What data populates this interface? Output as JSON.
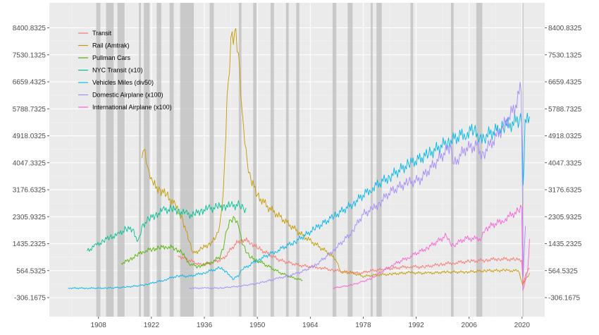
{
  "chart_data": {
    "type": "line",
    "title": "",
    "xlabel": "",
    "ylabel": "",
    "xlim": [
      1895,
      2026
    ],
    "ylim": [
      -400,
      8800
    ],
    "x_ticks": [
      1908,
      1922,
      1936,
      1950,
      1964,
      1978,
      1992,
      2006,
      2020
    ],
    "x_tick_labels": [
      "1908",
      "1922",
      "1936",
      "1950",
      "1964",
      "1978",
      "1992",
      "2006",
      "2020"
    ],
    "y_ticks": [
      -306.1675,
      564.5325,
      1435.2325,
      2305.9325,
      3176.6325,
      4047.3325,
      4918.0325,
      5788.7325,
      6659.4325,
      7530.1325,
      8400.8325
    ],
    "y_tick_labels": [
      "-306.1675",
      "564.5325",
      "1435.2325",
      "2305.9325",
      "3176.6325",
      "4047.3325",
      "4918.0325",
      "5788.7325",
      "6659.4325",
      "7530.1325",
      "8400.8325"
    ],
    "grid": true,
    "legend_position": "top-left",
    "recession_periods": [
      [
        1907.4,
        1908.5
      ],
      [
        1910.0,
        1912.0
      ],
      [
        1913.0,
        1914.9
      ],
      [
        1918.7,
        1919.2
      ],
      [
        1920.0,
        1921.5
      ],
      [
        1923.4,
        1924.6
      ],
      [
        1926.8,
        1927.9
      ],
      [
        1929.6,
        1933.2
      ],
      [
        1937.4,
        1938.5
      ],
      [
        1945.1,
        1945.8
      ],
      [
        1948.9,
        1949.8
      ],
      [
        1953.5,
        1954.4
      ],
      [
        1957.6,
        1958.3
      ],
      [
        1960.3,
        1961.1
      ],
      [
        1969.9,
        1970.9
      ],
      [
        1973.9,
        1975.2
      ],
      [
        1980.0,
        1980.5
      ],
      [
        1981.5,
        1982.9
      ],
      [
        1990.5,
        1991.2
      ],
      [
        2001.2,
        2001.9
      ],
      [
        2007.9,
        2009.5
      ],
      [
        2020.1,
        2020.4
      ]
    ],
    "series": [
      {
        "name": "Transit",
        "color": "#f8766d",
        "x": [
          1929,
          1932,
          1935,
          1938,
          1941,
          1944,
          1946,
          1948,
          1950,
          1953,
          1956,
          1959,
          1962,
          1966,
          1970,
          1974,
          1977,
          1980,
          1983,
          1986,
          1990,
          1994,
          1998,
          2002,
          2006,
          2010,
          2014,
          2018,
          2019.9,
          2020.3,
          2021,
          2022
        ],
        "values": [
          1050,
          900,
          750,
          820,
          950,
          1400,
          1580,
          1500,
          1300,
          1100,
          900,
          800,
          720,
          680,
          580,
          520,
          480,
          560,
          600,
          640,
          700,
          680,
          760,
          820,
          860,
          900,
          950,
          920,
          900,
          120,
          450,
          700
        ]
      },
      {
        "name": "Rail (Amtrak)",
        "color": "#c49a00",
        "x": [
          1919.5,
          1920,
          1921,
          1922,
          1924,
          1926,
          1928,
          1930,
          1932,
          1933,
          1935,
          1937,
          1939,
          1940,
          1941,
          1942,
          1943,
          1944,
          1945,
          1946,
          1947,
          1948,
          1950,
          1953,
          1956,
          1959,
          1962,
          1965,
          1968,
          1971,
          1972,
          1975,
          1978,
          1981,
          1985,
          1990,
          1995,
          2000,
          2005,
          2010,
          2015,
          2019,
          2020.2,
          2021,
          2022
        ],
        "values": [
          4200,
          4500,
          3800,
          3400,
          3200,
          3000,
          2700,
          2300,
          1500,
          1100,
          1250,
          1400,
          1600,
          1900,
          3000,
          6000,
          8000,
          8300,
          7500,
          5500,
          4300,
          3600,
          3000,
          2600,
          2300,
          2000,
          1700,
          1450,
          1200,
          900,
          500,
          500,
          380,
          420,
          450,
          500,
          480,
          520,
          520,
          560,
          570,
          560,
          100,
          300,
          450
        ]
      },
      {
        "name": "Pullman Cars",
        "color": "#53b400",
        "x": [
          1914,
          1916,
          1918,
          1920,
          1922,
          1924,
          1926,
          1928,
          1930,
          1932,
          1934,
          1936,
          1938,
          1940,
          1941,
          1942,
          1943,
          1944,
          1945,
          1946,
          1947,
          1948,
          1950,
          1953,
          1956,
          1959,
          1962
        ],
        "values": [
          800,
          900,
          1050,
          1200,
          1250,
          1300,
          1350,
          1300,
          1150,
          800,
          700,
          750,
          850,
          1000,
          1300,
          1900,
          2200,
          2300,
          2100,
          1500,
          1200,
          1000,
          900,
          700,
          500,
          350,
          250
        ]
      },
      {
        "name": "NYC Transit (x10)",
        "color": "#00c094",
        "x": [
          1905,
          1907,
          1909,
          1911,
          1913,
          1915,
          1917,
          1918.5,
          1919.5,
          1921,
          1923,
          1925,
          1927,
          1929,
          1931,
          1933,
          1935,
          1937,
          1939,
          1941,
          1943,
          1945,
          1946,
          1947
        ],
        "values": [
          1200,
          1350,
          1500,
          1650,
          1700,
          1900,
          1900,
          1500,
          2000,
          2200,
          2350,
          2500,
          2550,
          2500,
          2400,
          2350,
          2500,
          2550,
          2600,
          2650,
          2650,
          2680,
          2600,
          2550
        ]
      },
      {
        "name": "Vehicles Miles (div50)",
        "color": "#00b6eb",
        "x": [
          1900,
          1905,
          1910,
          1915,
          1920,
          1925,
          1929,
          1932,
          1936,
          1940,
          1942,
          1943.5,
          1945,
          1946,
          1950,
          1955,
          1960,
          1965,
          1970,
          1975,
          1980,
          1985,
          1990,
          1995,
          2000,
          2005,
          2007,
          2008.5,
          2010,
          2015,
          2019,
          2019.9,
          2020.3,
          2020.8,
          2022
        ],
        "values": [
          0,
          0,
          0,
          30,
          100,
          250,
          400,
          380,
          500,
          650,
          530,
          280,
          400,
          600,
          900,
          1200,
          1500,
          1900,
          2300,
          2700,
          3200,
          3600,
          4000,
          4300,
          4700,
          5000,
          5100,
          4950,
          4900,
          5200,
          5400,
          5450,
          3300,
          5300,
          5500
        ]
      },
      {
        "name": "Domestic Airplane (x100)",
        "color": "#a58aff",
        "x": [
          1932,
          1936,
          1940,
          1945,
          1950,
          1955,
          1960,
          1965,
          1970,
          1975,
          1978,
          1980,
          1982,
          1985,
          1988,
          1990,
          1993,
          1996,
          1999,
          2001,
          2002,
          2005,
          2008,
          2009.5,
          2012,
          2015,
          2018,
          2019.8,
          2020.3,
          2020.9
        ],
        "values": [
          0,
          0,
          0,
          60,
          150,
          300,
          450,
          700,
          1200,
          1800,
          2400,
          2500,
          2700,
          3100,
          3300,
          3400,
          3500,
          3900,
          4300,
          4600,
          4000,
          4500,
          4600,
          4300,
          4700,
          5200,
          5800,
          6500,
          400,
          2000
        ]
      },
      {
        "name": "International Airplane (x100)",
        "color": "#fb61d7",
        "x": [
          1970,
          1975,
          1980,
          1985,
          1990,
          1995,
          2000,
          2001,
          2002,
          2005,
          2009,
          2010,
          2015,
          2019,
          2019.9,
          2020.2,
          2020.8,
          2021.5,
          2022
        ],
        "values": [
          0,
          100,
          300,
          700,
          1000,
          1300,
          1700,
          1450,
          1400,
          1600,
          1600,
          1900,
          2200,
          2500,
          2600,
          -100,
          200,
          600,
          1500
        ]
      }
    ]
  }
}
